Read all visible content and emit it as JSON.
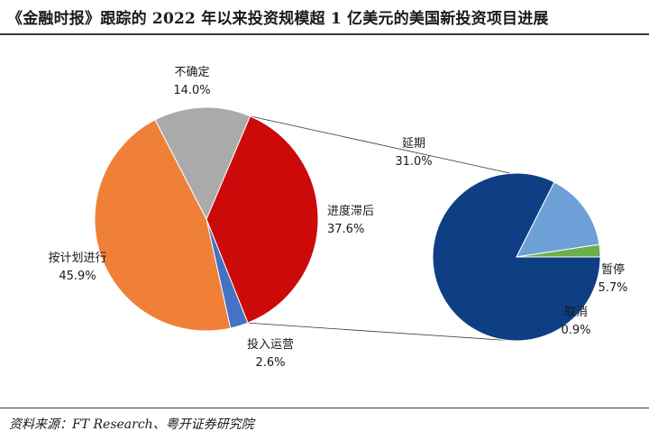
{
  "header": {
    "title": "《金融时报》跟踪的 2022 年以来投资规模超 1 亿美元的美国新投资项目进展"
  },
  "footer": {
    "source": "资料来源：FT Research、粤开证券研究院"
  },
  "colors": {
    "delayed": "#cc0a0a",
    "operating": "#4472c4",
    "on_schedule": "#f08038",
    "uncertain": "#aaaaaa",
    "postponed": "#0e3f85",
    "paused": "#6ea0d8",
    "cancelled": "#6ab04c"
  },
  "chart_data": {
    "type": "pie",
    "title": "《金融时报》跟踪的 2022 年以来投资规模超 1 亿美元的美国新投资项目进展",
    "main": {
      "slices": [
        {
          "key": "delayed",
          "label": "进度滞后",
          "value": 37.6,
          "value_label": "37.6%"
        },
        {
          "key": "operating",
          "label": "投入运营",
          "value": 2.6,
          "value_label": "2.6%"
        },
        {
          "key": "on_schedule",
          "label": "按计划进行",
          "value": 45.9,
          "value_label": "45.9%"
        },
        {
          "key": "uncertain",
          "label": "不确定",
          "value": 14.0,
          "value_label": "14.0%"
        }
      ]
    },
    "breakdown_of": "进度滞后",
    "secondary": {
      "slices": [
        {
          "key": "postponed",
          "label": "延期",
          "value": 31.0,
          "value_label": "31.0%"
        },
        {
          "key": "paused",
          "label": "暂停",
          "value": 5.7,
          "value_label": "5.7%"
        },
        {
          "key": "cancelled",
          "label": "取消",
          "value": 0.9,
          "value_label": "0.9%"
        }
      ]
    },
    "legend": "none"
  }
}
